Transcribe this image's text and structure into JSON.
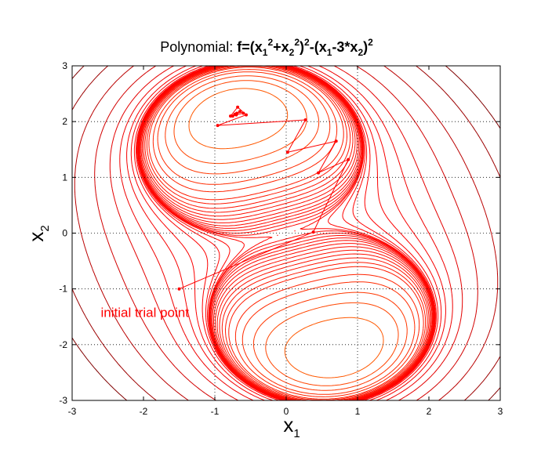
{
  "chart_data": {
    "type": "contour",
    "title": {
      "prefix": "Polynomial: ",
      "formula_parts": [
        {
          "t": "f=(x",
          "s": "n"
        },
        {
          "t": "1",
          "s": "sub"
        },
        {
          "t": "2",
          "s": "sup"
        },
        {
          "t": "+x",
          "s": "n"
        },
        {
          "t": "2",
          "s": "sub"
        },
        {
          "t": "2",
          "s": "sup"
        },
        {
          "t": ")",
          "s": "n"
        },
        {
          "t": "2",
          "s": "sup"
        },
        {
          "t": "-(x",
          "s": "n"
        },
        {
          "t": "1",
          "s": "sub"
        },
        {
          "t": "-3*x",
          "s": "n"
        },
        {
          "t": "2",
          "s": "sub"
        },
        {
          "t": ")",
          "s": "n"
        },
        {
          "t": "2",
          "s": "sup"
        }
      ]
    },
    "xlabel": {
      "base": "x",
      "sub": "1"
    },
    "ylabel": {
      "base": "x",
      "sub": "2"
    },
    "xlim": [
      -3,
      3
    ],
    "ylim": [
      -3,
      3
    ],
    "xticks": [
      -3,
      -2,
      -1,
      0,
      1,
      2,
      3
    ],
    "yticks": [
      -3,
      -2,
      -1,
      0,
      1,
      2,
      3
    ],
    "grid": "dotted, at x=-1,0,1 and y=-2,-1,0,1,2",
    "contour_levels": [
      -60,
      -40,
      -30,
      -25,
      -20,
      -16,
      -13,
      -10,
      -8,
      -6,
      -5,
      -4,
      -3.2,
      -2.5,
      -1.9,
      -1.4,
      -1,
      -0.7,
      -0.45,
      -0.25,
      -0.1,
      0,
      0.15,
      0.5,
      1,
      2,
      4,
      7,
      12,
      20,
      35,
      60,
      100,
      150
    ],
    "colormap": "jet",
    "colormap_stops": [
      "#00008f",
      "#0000ff",
      "#00ffff",
      "#ffff00",
      "#ff0000",
      "#800000"
    ],
    "path": {
      "x": [
        -1.5,
        0.38,
        0.87,
        0.45,
        0.7,
        0.02,
        0.27,
        -0.96,
        -0.56,
        -0.68,
        -0.78,
        -0.6,
        -0.65,
        -0.7,
        -0.75,
        -0.69,
        -0.72,
        -0.7
      ],
      "y": [
        -1.0,
        0.02,
        1.32,
        1.08,
        1.65,
        1.45,
        2.03,
        1.93,
        2.12,
        2.26,
        2.1,
        2.15,
        2.18,
        2.12,
        2.1,
        2.15,
        2.13,
        2.14
      ]
    },
    "annotations": [
      {
        "text": "initial trial point",
        "x": -1.5,
        "y": -1.0
      }
    ],
    "path_color": "#ff0000"
  }
}
